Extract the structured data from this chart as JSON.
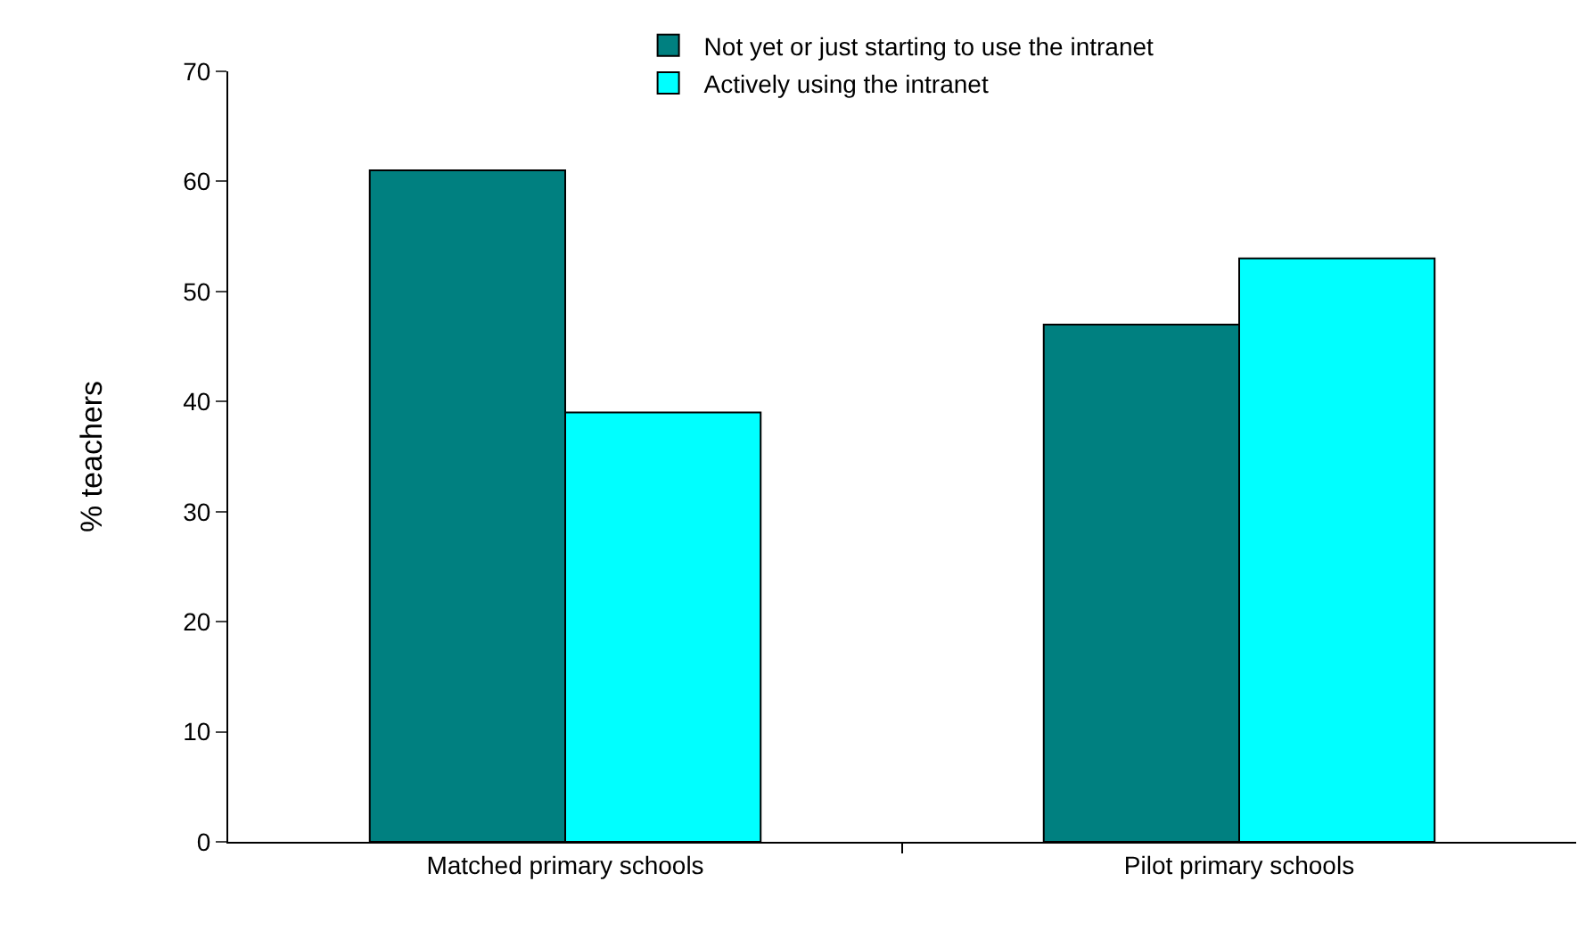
{
  "chart_data": {
    "type": "bar",
    "ylabel": "% teachers",
    "categories": [
      "Matched primary schools",
      "Pilot primary schools"
    ],
    "series": [
      {
        "name": "Not yet or just starting to use the intranet",
        "color": "#008080",
        "values": [
          61,
          47
        ]
      },
      {
        "name": "Actively using the intranet",
        "color": "#00ffff",
        "values": [
          39,
          53
        ]
      }
    ],
    "ylim": [
      0,
      70
    ],
    "yticks": [
      0,
      10,
      20,
      30,
      40,
      50,
      60,
      70
    ],
    "legend": "top"
  }
}
